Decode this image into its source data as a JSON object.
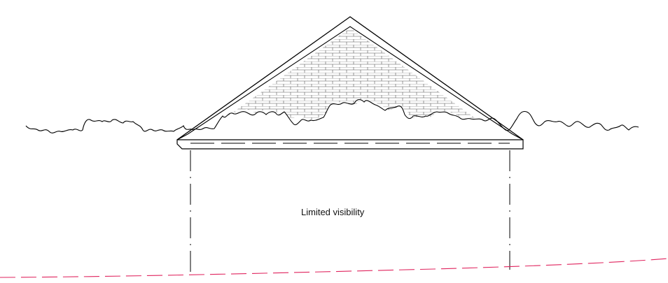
{
  "drawing": {
    "annotation": "Limited visibility",
    "colors": {
      "line": "#000000",
      "brick": "#555555",
      "ground_line": "#e0245e",
      "background": "#ffffff"
    }
  }
}
